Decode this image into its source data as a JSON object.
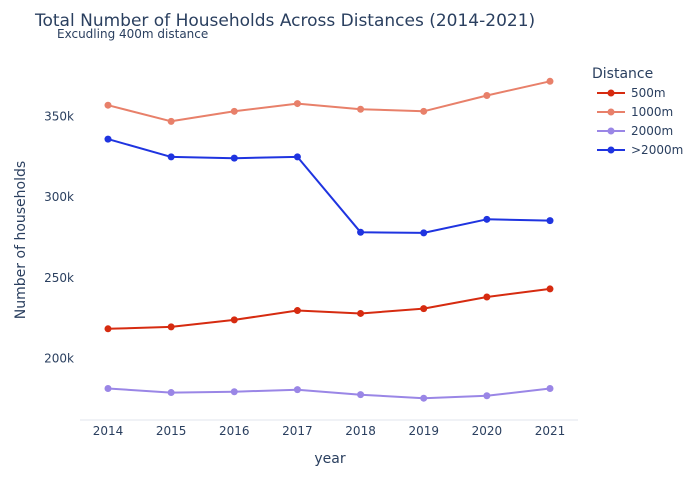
{
  "chart_data": {
    "type": "line",
    "title": "Total Number of Households Across Distances (2014-2021)",
    "subtitle": "Excudling 400m distance",
    "xlabel": "year",
    "ylabel": "Number of households",
    "x": [
      "2014",
      "2015",
      "2016",
      "2017",
      "2018",
      "2019",
      "2020",
      "2021"
    ],
    "ylim": [
      162000,
      385000
    ],
    "yticks": [
      200000,
      250000,
      300000,
      350000
    ],
    "ytick_labels": [
      "200k",
      "250k",
      "300k",
      "350k"
    ],
    "grid": false,
    "legend": {
      "title": "Distance",
      "placement": "top-right"
    },
    "series": [
      {
        "name": "500m",
        "color": "#d62b10",
        "values": [
          218500,
          219700,
          224000,
          229800,
          228000,
          231000,
          238200,
          243200
        ]
      },
      {
        "name": "1000m",
        "color": "#e8806a",
        "values": [
          357000,
          347000,
          353200,
          358000,
          354500,
          353200,
          363000,
          371800
        ]
      },
      {
        "name": "2000m",
        "color": "#9a86e6",
        "values": [
          181500,
          179000,
          179500,
          180800,
          177700,
          175500,
          177000,
          181500
        ]
      },
      {
        "name": ">2000m",
        "color": "#1f34e0",
        "values": [
          336000,
          325000,
          324200,
          325000,
          278300,
          277900,
          286300,
          285500
        ]
      }
    ]
  }
}
